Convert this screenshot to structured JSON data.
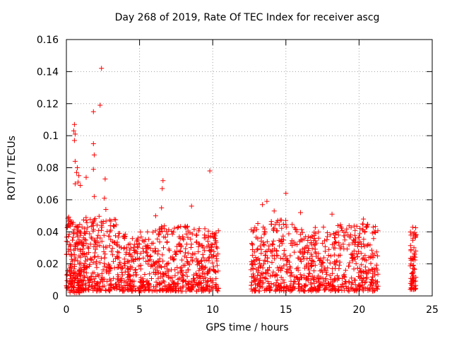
{
  "chart_data": {
    "type": "scatter",
    "title": "Day 268 of 2019, Rate Of TEC Index for receiver ascg",
    "xlabel": "GPS time / hours",
    "ylabel": "ROTI / TECUs",
    "xlim": [
      0,
      25
    ],
    "ylim": [
      0,
      0.16
    ],
    "xticks": [
      0,
      5,
      10,
      15,
      20,
      25
    ],
    "yticks": [
      0,
      0.02,
      0.04,
      0.06,
      0.08,
      0.1,
      0.12,
      0.14,
      0.16
    ],
    "grid": true,
    "marker": "+",
    "color": "#ff0000",
    "outliers": [
      {
        "x": 2.4,
        "y": 0.142
      },
      {
        "x": 2.3,
        "y": 0.119
      },
      {
        "x": 1.85,
        "y": 0.115
      },
      {
        "x": 0.55,
        "y": 0.107
      },
      {
        "x": 0.5,
        "y": 0.103
      },
      {
        "x": 0.6,
        "y": 0.101
      },
      {
        "x": 0.55,
        "y": 0.097
      },
      {
        "x": 1.85,
        "y": 0.095
      },
      {
        "x": 1.9,
        "y": 0.088
      },
      {
        "x": 0.6,
        "y": 0.084
      },
      {
        "x": 0.75,
        "y": 0.08
      },
      {
        "x": 1.85,
        "y": 0.079
      },
      {
        "x": 9.8,
        "y": 0.078
      },
      {
        "x": 0.7,
        "y": 0.077
      },
      {
        "x": 0.85,
        "y": 0.075
      },
      {
        "x": 1.35,
        "y": 0.074
      },
      {
        "x": 2.65,
        "y": 0.073
      },
      {
        "x": 6.6,
        "y": 0.072
      },
      {
        "x": 0.8,
        "y": 0.071
      },
      {
        "x": 0.6,
        "y": 0.07
      },
      {
        "x": 0.95,
        "y": 0.069
      },
      {
        "x": 6.55,
        "y": 0.067
      },
      {
        "x": 15.0,
        "y": 0.064
      },
      {
        "x": 1.9,
        "y": 0.062
      },
      {
        "x": 2.6,
        "y": 0.061
      },
      {
        "x": 13.7,
        "y": 0.059
      },
      {
        "x": 13.4,
        "y": 0.057
      },
      {
        "x": 8.55,
        "y": 0.056
      },
      {
        "x": 6.5,
        "y": 0.055
      },
      {
        "x": 2.7,
        "y": 0.054
      },
      {
        "x": 14.2,
        "y": 0.053
      },
      {
        "x": 16.0,
        "y": 0.052
      },
      {
        "x": 18.15,
        "y": 0.051
      },
      {
        "x": 6.1,
        "y": 0.05
      },
      {
        "x": 20.3,
        "y": 0.048
      }
    ],
    "clusters": [
      {
        "x_start": 0.0,
        "x_end": 1.0,
        "y_low": 0.002,
        "y_high": 0.05,
        "count": 170
      },
      {
        "x_start": 1.0,
        "x_end": 3.5,
        "y_low": 0.003,
        "y_high": 0.05,
        "count": 260
      },
      {
        "x_start": 3.5,
        "x_end": 6.0,
        "y_low": 0.003,
        "y_high": 0.04,
        "count": 230
      },
      {
        "x_start": 6.0,
        "x_end": 8.5,
        "y_low": 0.003,
        "y_high": 0.045,
        "count": 230
      },
      {
        "x_start": 8.5,
        "x_end": 10.4,
        "y_low": 0.003,
        "y_high": 0.042,
        "count": 190
      },
      {
        "x_start": 12.6,
        "x_end": 15.5,
        "y_low": 0.003,
        "y_high": 0.048,
        "count": 260
      },
      {
        "x_start": 15.5,
        "x_end": 18.5,
        "y_low": 0.003,
        "y_high": 0.043,
        "count": 260
      },
      {
        "x_start": 18.5,
        "x_end": 21.3,
        "y_low": 0.003,
        "y_high": 0.045,
        "count": 240
      },
      {
        "x_start": 23.5,
        "x_end": 23.9,
        "y_low": 0.004,
        "y_high": 0.043,
        "count": 70
      }
    ]
  }
}
